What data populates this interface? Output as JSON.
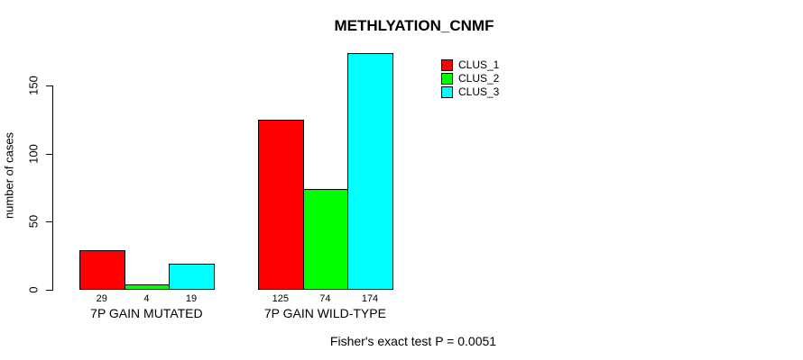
{
  "chart_data": {
    "type": "bar",
    "title": "METHLYATION_CNMF",
    "ylabel": "number of cases",
    "xlabel": "",
    "categories": [
      "7P GAIN MUTATED",
      "7P GAIN WILD-TYPE"
    ],
    "series": [
      {
        "name": "CLUS_1",
        "color": "#ff0000",
        "values": [
          29,
          125
        ]
      },
      {
        "name": "CLUS_2",
        "color": "#00ff00",
        "values": [
          4,
          74
        ]
      },
      {
        "name": "CLUS_3",
        "color": "#00ffff",
        "values": [
          19,
          174
        ]
      }
    ],
    "yticks": [
      0,
      50,
      100,
      150
    ],
    "axis_range": [
      0,
      150
    ],
    "grid": false,
    "legend_position": "top-right",
    "value_labels_shown": true,
    "annotation": "Fisher's exact test P = 0.0051"
  },
  "colors": {
    "background": "#ffffff",
    "axis": "#000000",
    "text": "#000000"
  }
}
